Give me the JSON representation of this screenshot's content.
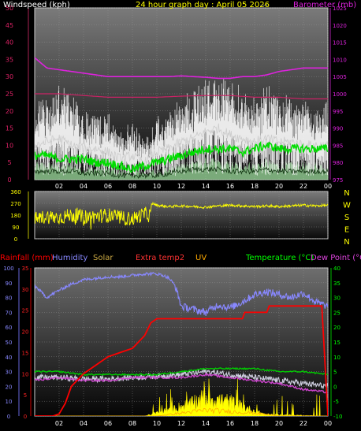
{
  "header": {
    "title": "24 hour graph day : April 05 2026",
    "title_suffix": "---"
  },
  "chart_data": [
    {
      "type": "line",
      "id": "wind_baro",
      "left_axis_label": "Windspeed (kph)",
      "right_axis_label": "Barometer (mb)",
      "x_ticks": [
        "02",
        "04",
        "06",
        "08",
        "10",
        "12",
        "14",
        "16",
        "18",
        "20",
        "22",
        "00"
      ],
      "ylim_left": [
        0,
        50
      ],
      "yticks_left": [
        0,
        5,
        10,
        15,
        20,
        25,
        30,
        35,
        40,
        45,
        50
      ],
      "ylim_right": [
        975,
        1025
      ],
      "yticks_right": [
        975,
        980,
        985,
        990,
        995,
        1000,
        1005,
        1010,
        1015,
        1020,
        1025
      ],
      "series": [
        {
          "key": "gust",
          "color": "#ffffff",
          "axis": "left",
          "x": [
            0,
            1,
            2,
            3,
            4,
            5,
            6,
            7,
            8,
            9,
            10,
            11,
            12,
            13,
            14,
            15,
            16,
            17,
            18,
            19,
            20,
            21,
            22,
            23,
            24
          ],
          "y": [
            16,
            18,
            20,
            17,
            15,
            14,
            13,
            9,
            11,
            7,
            12,
            14,
            17,
            19,
            22,
            23,
            21,
            19,
            17,
            20,
            18,
            17,
            16,
            15,
            16
          ]
        },
        {
          "key": "wind_avg",
          "color": "#cccccc",
          "axis": "left",
          "x": [
            0,
            1,
            2,
            3,
            4,
            5,
            6,
            7,
            8,
            9,
            10,
            11,
            12,
            13,
            14,
            15,
            16,
            17,
            18,
            19,
            20,
            21,
            22,
            23,
            24
          ],
          "y": [
            10,
            11,
            12,
            10,
            9,
            9,
            8,
            6,
            7,
            5,
            8,
            9,
            11,
            12,
            14,
            15,
            13,
            12,
            11,
            12,
            11,
            11,
            10,
            10,
            10
          ]
        },
        {
          "key": "wind_10min",
          "color": "#00dd00",
          "axis": "left",
          "x": [
            0,
            1,
            2,
            3,
            4,
            5,
            6,
            7,
            8,
            9,
            10,
            11,
            12,
            13,
            14,
            15,
            16,
            17,
            18,
            19,
            20,
            21,
            22,
            23,
            24
          ],
          "y": [
            7,
            7,
            6,
            6,
            6,
            5,
            5,
            4,
            3,
            4,
            5,
            6,
            7,
            8,
            9,
            9,
            9,
            8,
            9,
            10,
            9,
            9,
            9,
            9,
            9
          ]
        },
        {
          "key": "wind_low",
          "color": "#99dd99",
          "axis": "left",
          "x": [
            0,
            1,
            2,
            3,
            4,
            5,
            6,
            7,
            8,
            9,
            10,
            11,
            12,
            13,
            14,
            15,
            16,
            17,
            18,
            19,
            20,
            21,
            22,
            23,
            24
          ],
          "y": [
            4,
            4,
            4,
            4,
            3,
            3,
            3,
            2,
            2,
            2,
            2,
            3,
            4,
            5,
            5,
            5,
            4,
            4,
            4,
            5,
            4,
            4,
            4,
            4,
            4
          ]
        },
        {
          "key": "barometer",
          "color": "#dd22dd",
          "axis": "right",
          "x": [
            0,
            1,
            2,
            3,
            4,
            5,
            6,
            7,
            8,
            9,
            10,
            11,
            12,
            13,
            14,
            15,
            16,
            17,
            18,
            19,
            20,
            21,
            22,
            23,
            24
          ],
          "y": [
            1010.5,
            1007.5,
            1007,
            1006.5,
            1006,
            1005.5,
            1005,
            1005,
            1005,
            1005,
            1005,
            1005,
            1005.2,
            1005,
            1004.8,
            1004.5,
            1004.5,
            1005,
            1005,
            1005.5,
            1006.5,
            1007,
            1007.5,
            1007.5,
            1007.5
          ]
        },
        {
          "key": "barometer_2",
          "color": "#cc2266",
          "axis": "right",
          "x": [
            0,
            2,
            4,
            6,
            8,
            10,
            12,
            14,
            16,
            18,
            20,
            22,
            24
          ],
          "y": [
            1000,
            1000,
            999.5,
            999,
            999,
            999,
            999.3,
            999.5,
            999.5,
            999,
            999,
            998.5,
            998.5
          ]
        }
      ]
    },
    {
      "type": "line",
      "id": "wind_direction",
      "x_ticks": [
        "02",
        "04",
        "06",
        "08",
        "10",
        "12",
        "14",
        "16",
        "18",
        "20",
        "22",
        "00"
      ],
      "ylim": [
        0,
        360
      ],
      "yticks": [
        0,
        90,
        180,
        270,
        360
      ],
      "compass_labels": [
        "N",
        "W",
        "S",
        "E",
        "N"
      ],
      "series": [
        {
          "key": "direction",
          "color": "#ffff00",
          "x": [
            0,
            1,
            2,
            3,
            4,
            5,
            6,
            7,
            8,
            9,
            9.5,
            9.6,
            10,
            11,
            12,
            13,
            14,
            15,
            16,
            17,
            18,
            19,
            20,
            21,
            22,
            23,
            24
          ],
          "y": [
            150,
            170,
            160,
            180,
            165,
            170,
            180,
            160,
            150,
            190,
            175,
            270,
            255,
            245,
            250,
            245,
            240,
            250,
            255,
            250,
            245,
            250,
            245,
            250,
            255,
            250,
            255
          ]
        }
      ]
    },
    {
      "type": "line",
      "id": "temp_multi",
      "legend": [
        "Rainfall (mm)",
        "Humidity",
        "Solar",
        "Extra temp2",
        "UV",
        "Temperature (°C)",
        "Dew Point (°C)"
      ],
      "x_ticks": [
        "02",
        "04",
        "06",
        "08",
        "10",
        "12",
        "14",
        "16",
        "18",
        "20",
        "22",
        "00"
      ],
      "ylim_humidity": [
        0,
        100
      ],
      "yticks_humidity": [
        0,
        10,
        20,
        30,
        40,
        50,
        60,
        70,
        80,
        90,
        100
      ],
      "ylim_rain": [
        0,
        35
      ],
      "yticks_rain": [
        0,
        5,
        10,
        15,
        20,
        25,
        30,
        35
      ],
      "ylim_temp": [
        -10,
        40
      ],
      "yticks_temp": [
        -10,
        -5,
        0,
        5,
        10,
        15,
        20,
        25,
        30,
        35,
        40
      ],
      "series": [
        {
          "key": "humidity",
          "color": "#8888ff",
          "axis": "humidity",
          "x": [
            0,
            1,
            2,
            3,
            4,
            5,
            6,
            7,
            8,
            9,
            10,
            10.5,
            11,
            11.5,
            12,
            13,
            14,
            15,
            16,
            17,
            18,
            19,
            20,
            21,
            22,
            23,
            24
          ],
          "y": [
            88,
            80,
            85,
            89,
            92,
            93,
            94,
            94,
            95,
            96,
            96,
            95,
            93,
            88,
            74,
            72,
            70,
            75,
            73,
            77,
            82,
            84,
            82,
            80,
            83,
            77,
            74
          ]
        },
        {
          "key": "rainfall",
          "color": "#ff0000",
          "axis": "rain",
          "x": [
            0,
            1.5,
            2,
            2.5,
            3,
            4,
            5,
            6,
            7,
            8,
            9,
            9.5,
            10,
            11,
            12,
            13,
            14,
            15,
            16,
            17,
            17.2,
            18,
            19,
            19.2,
            20,
            21,
            22,
            23,
            23.5,
            24
          ],
          "y": [
            0,
            0,
            0.5,
            3,
            7,
            10,
            12,
            14,
            15,
            16,
            19,
            22,
            23,
            23,
            23,
            23,
            23,
            23,
            23,
            23,
            24.5,
            24.5,
            24.5,
            26,
            26,
            26,
            26,
            26,
            26,
            0
          ]
        },
        {
          "key": "temperature",
          "color": "#00cc00",
          "axis": "temp",
          "x": [
            0,
            2,
            4,
            6,
            8,
            10,
            12,
            14,
            16,
            18,
            20,
            22,
            24
          ],
          "y": [
            5,
            5,
            4,
            4,
            4,
            4,
            5,
            6,
            6,
            6,
            5,
            5,
            4
          ]
        },
        {
          "key": "dew_point",
          "color": "#cc44cc",
          "axis": "temp",
          "x": [
            0,
            2,
            4,
            6,
            8,
            10,
            12,
            14,
            16,
            18,
            20,
            22,
            24
          ],
          "y": [
            2,
            3,
            2,
            2,
            3,
            3,
            3,
            4,
            3,
            2,
            1,
            -1,
            -2
          ]
        },
        {
          "key": "extra_temp2",
          "color": "#cccccc",
          "axis": "temp",
          "x": [
            0,
            2,
            4,
            6,
            8,
            10,
            12,
            14,
            16,
            18,
            20,
            22,
            24
          ],
          "y": [
            3,
            3,
            2.5,
            2.5,
            3,
            3.5,
            4,
            5,
            4,
            3,
            2,
            1,
            0
          ]
        },
        {
          "key": "solar",
          "color": "#ffff00",
          "axis": "humidity",
          "x": [
            0,
            9,
            10,
            11,
            12,
            13,
            14,
            15,
            16,
            17,
            18,
            19,
            24
          ],
          "y": [
            0,
            0,
            2,
            4,
            6,
            8,
            12,
            10,
            9,
            6,
            3,
            1,
            0
          ]
        },
        {
          "key": "uv",
          "color": "#ffaa00",
          "axis": "humidity",
          "x": [
            0,
            10,
            12,
            14,
            16,
            18,
            20,
            24
          ],
          "y": [
            0,
            0,
            2,
            4,
            3,
            2,
            0,
            0
          ]
        }
      ]
    }
  ],
  "colors": {
    "windspeed_title": "#ffffff",
    "date_title": "#ffff00",
    "barometer_title": "#dd22dd",
    "rain": "#ff0000",
    "humidity": "#8888ff",
    "solar": "#ccaa44",
    "extra_temp2": "#ff3333",
    "uv": "#ffaa00",
    "temperature": "#00ff00",
    "dewpoint": "#dd44dd"
  }
}
